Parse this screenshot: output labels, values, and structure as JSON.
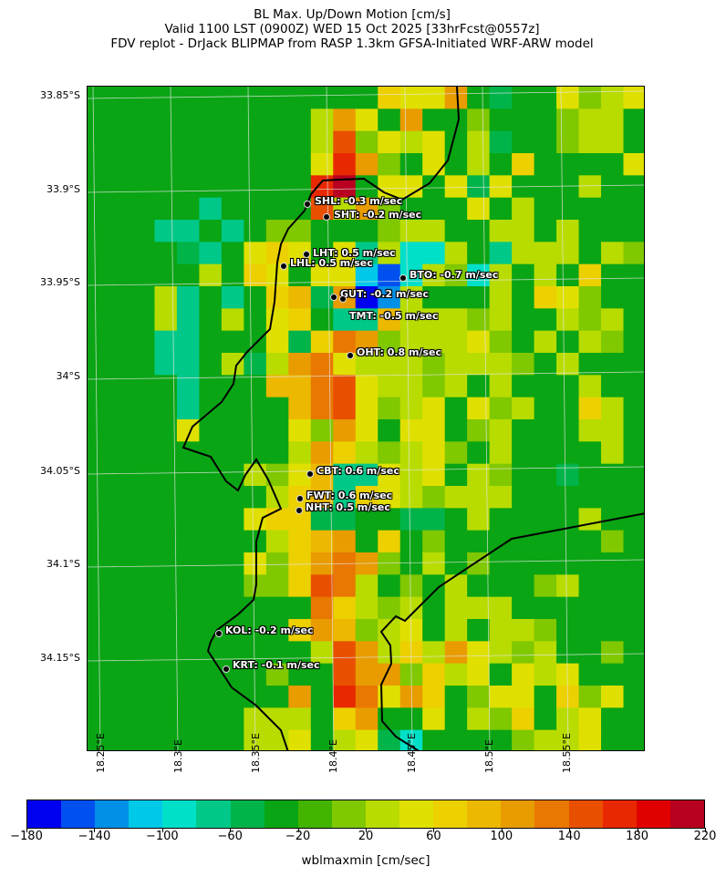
{
  "title": {
    "line1": "BL Max. Up/Down Motion [cm/s]",
    "line2": "Valid 1100 LST (0900Z) WED 15 Oct 2025 [33hrFcst@0557z]",
    "line3": "FDV replot - DrJack BLIPMAP from RASP 1.3km GFSA-Initiated WRF-ARW model"
  },
  "axes": {
    "lat_labels": [
      "33.85°S",
      "33.9°S",
      "33.95°S",
      "34°S",
      "34.05°S",
      "34.1°S",
      "34.15°S"
    ],
    "lon_labels": [
      "18.25°E",
      "18.3°E",
      "18.35°E",
      "18.4°E",
      "18.45°E",
      "18.5°E",
      "18.55°E"
    ]
  },
  "stations": [
    {
      "label": "SHL: -0.3 m/sec"
    },
    {
      "label": "SHT: -0.2 m/sec"
    },
    {
      "label": "LHT: 0.5 m/sec"
    },
    {
      "label": "LHL: 0.5 m/sec"
    },
    {
      "label": "BTO: -0.7 m/sec"
    },
    {
      "label": "GUT: -0.2 m/sec"
    },
    {
      "label": "TMT: -0.5 m/sec"
    },
    {
      "label": "OHT: 0.8 m/sec"
    },
    {
      "label": "CBT: 0.6 m/sec"
    },
    {
      "label": "FWT: 0.6 m/sec"
    },
    {
      "label": "NHT: 0.5 m/sec"
    },
    {
      "label": "KOL: -0.2 m/sec"
    },
    {
      "label": "KRT: -0.1 m/sec"
    }
  ],
  "colorbar": {
    "label": "wblmaxmin [cm/sec]",
    "range": [
      -180,
      220
    ],
    "step": 20,
    "tick_labels": [
      "−180",
      "−140",
      "−100",
      "−60",
      "−20",
      "20",
      "60",
      "100",
      "140",
      "180",
      "220"
    ],
    "colors": [
      "#0000f0",
      "#0050f0",
      "#0090e8",
      "#00c8e8",
      "#00e0c8",
      "#00c888",
      "#00b44a",
      "#0aa514",
      "#42b400",
      "#80c800",
      "#b8dc00",
      "#e0e000",
      "#ecd000",
      "#ecb800",
      "#e89c00",
      "#e87800",
      "#e85000",
      "#e82800",
      "#e00000",
      "#b80020"
    ]
  },
  "field_grid": [
    "7777777777777cbbe7677b9ab",
    "7777777777aeb7e7797779aa7",
    "7777777777ag9bab7a6779aa7",
    "7777777777bhe97b7a7c7777b",
    "7777777777hj7bb7b6b777a77",
    "7777757777gae9777b7a77777",
    "77755757997779aa77aa7a777",
    "7777657bcb7b5a44a75aaa7a9",
    "77777a7cb7bb314a94a7a7c77",
    "777a5757cd6e02a777a7cb977",
    "777a57a7bc755daaa9a77a9a7",
    "77755777b6cfe9aaab97a7a97",
    "777557a6aefbaaa9aaa97a777",
    "77775777ddfgbaa9a7a777a77",
    "777757777dfgb9ab7b9a77ca7",
    "7777b7777b9eb7bb79a777aa7",
    "777777777aeca9ab97a7777a7",
    "7777777a9bd55bab7a9776777",
    "77777777acd5cba9aaa777777",
    "7777777bcc6677667a7777a77",
    "77777777acde7c79777777797",
    "7777777b9cefe97a797777777",
    "777777799cgfa797a7779a777",
    "7777777777fca9a7aaa777777",
    "777777777ced9ab7a7aa97777",
    "7777777777ageacaeba9a7797",
    "77777777977gee9cab7bab777",
    "777777777e7hfbec79bb7c9b7",
    "7777777aaa7ce77b7a9c7ab77",
    "7777777aab7ab6477779aab77"
  ]
}
